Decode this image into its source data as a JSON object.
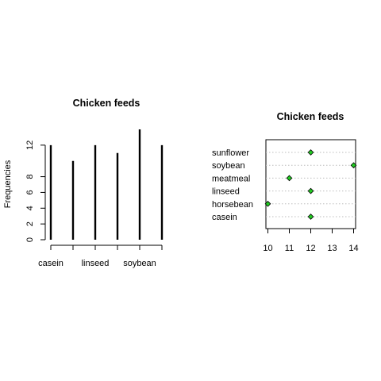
{
  "chart_data": [
    {
      "type": "bar",
      "title": "Chicken feeds",
      "xlabel": "",
      "ylabel": "Frequencies",
      "categories": [
        "casein",
        "horsebean",
        "linseed",
        "meatmeal",
        "soybean",
        "sunflower"
      ],
      "values": [
        12,
        10,
        12,
        11,
        14,
        12
      ],
      "shown_category_labels": [
        "casein",
        "linseed",
        "soybean"
      ],
      "y_ticks": [
        0,
        2,
        4,
        6,
        8,
        12
      ],
      "ylim": [
        0,
        14
      ],
      "style": "vertical lines (type h)",
      "color": "#000000"
    },
    {
      "type": "scatter",
      "title": "Chicken feeds",
      "xlabel": "",
      "ylabel": "",
      "categories": [
        "casein",
        "horsebean",
        "linseed",
        "meatmeal",
        "soybean",
        "sunflower"
      ],
      "values": [
        12,
        10,
        12,
        11,
        14,
        12
      ],
      "x_ticks": [
        10,
        11,
        12,
        13,
        14
      ],
      "xlim": [
        10,
        14
      ],
      "style": "dot chart",
      "point_color": "#22cc22",
      "grid": "horizontal dotted lines"
    }
  ]
}
